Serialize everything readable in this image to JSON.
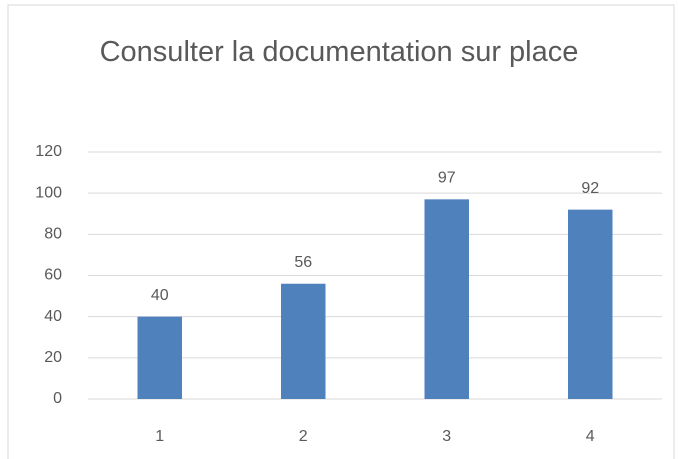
{
  "chart_data": {
    "type": "bar",
    "title": "Consulter la documentation sur place",
    "categories": [
      "1",
      "2",
      "3",
      "4"
    ],
    "values": [
      40,
      56,
      97,
      92
    ],
    "color": "#4f81bd",
    "ylim": [
      0,
      120
    ],
    "yticks": [
      0,
      20,
      40,
      60,
      80,
      100,
      120
    ],
    "grid": true,
    "data_labels": true
  }
}
